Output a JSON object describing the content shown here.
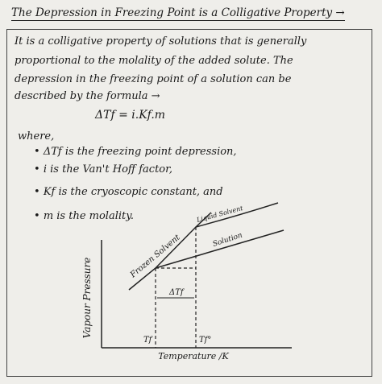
{
  "header": {
    "title": "The Depression in Freezing Point is a Colligative Property →"
  },
  "body": {
    "paragraph": [
      "It is a colligative property of solutions that is generally",
      "proportional to the molality of the added solute. The",
      "depression in the freezing point of a solution can be",
      "described by the formula →"
    ],
    "formula": "ΔTf = i.Kf.m",
    "where": "where,",
    "bullets": [
      "ΔTf is the freezing point depression,",
      "i is the Van't Hoff factor,",
      "Kf is the cryoscopic constant, and",
      "m is the molality."
    ]
  },
  "diagram": {
    "y_axis_label": "Vapour Pressure",
    "x_axis_label": "Temperature /K",
    "labels": {
      "frozen_solvent": "Frozen Solvent",
      "liquid_solvent": "Liquid Solvent",
      "solution": "Solution",
      "delta": "ΔTf",
      "tf": "Tf",
      "tf0": "Tf°"
    }
  }
}
